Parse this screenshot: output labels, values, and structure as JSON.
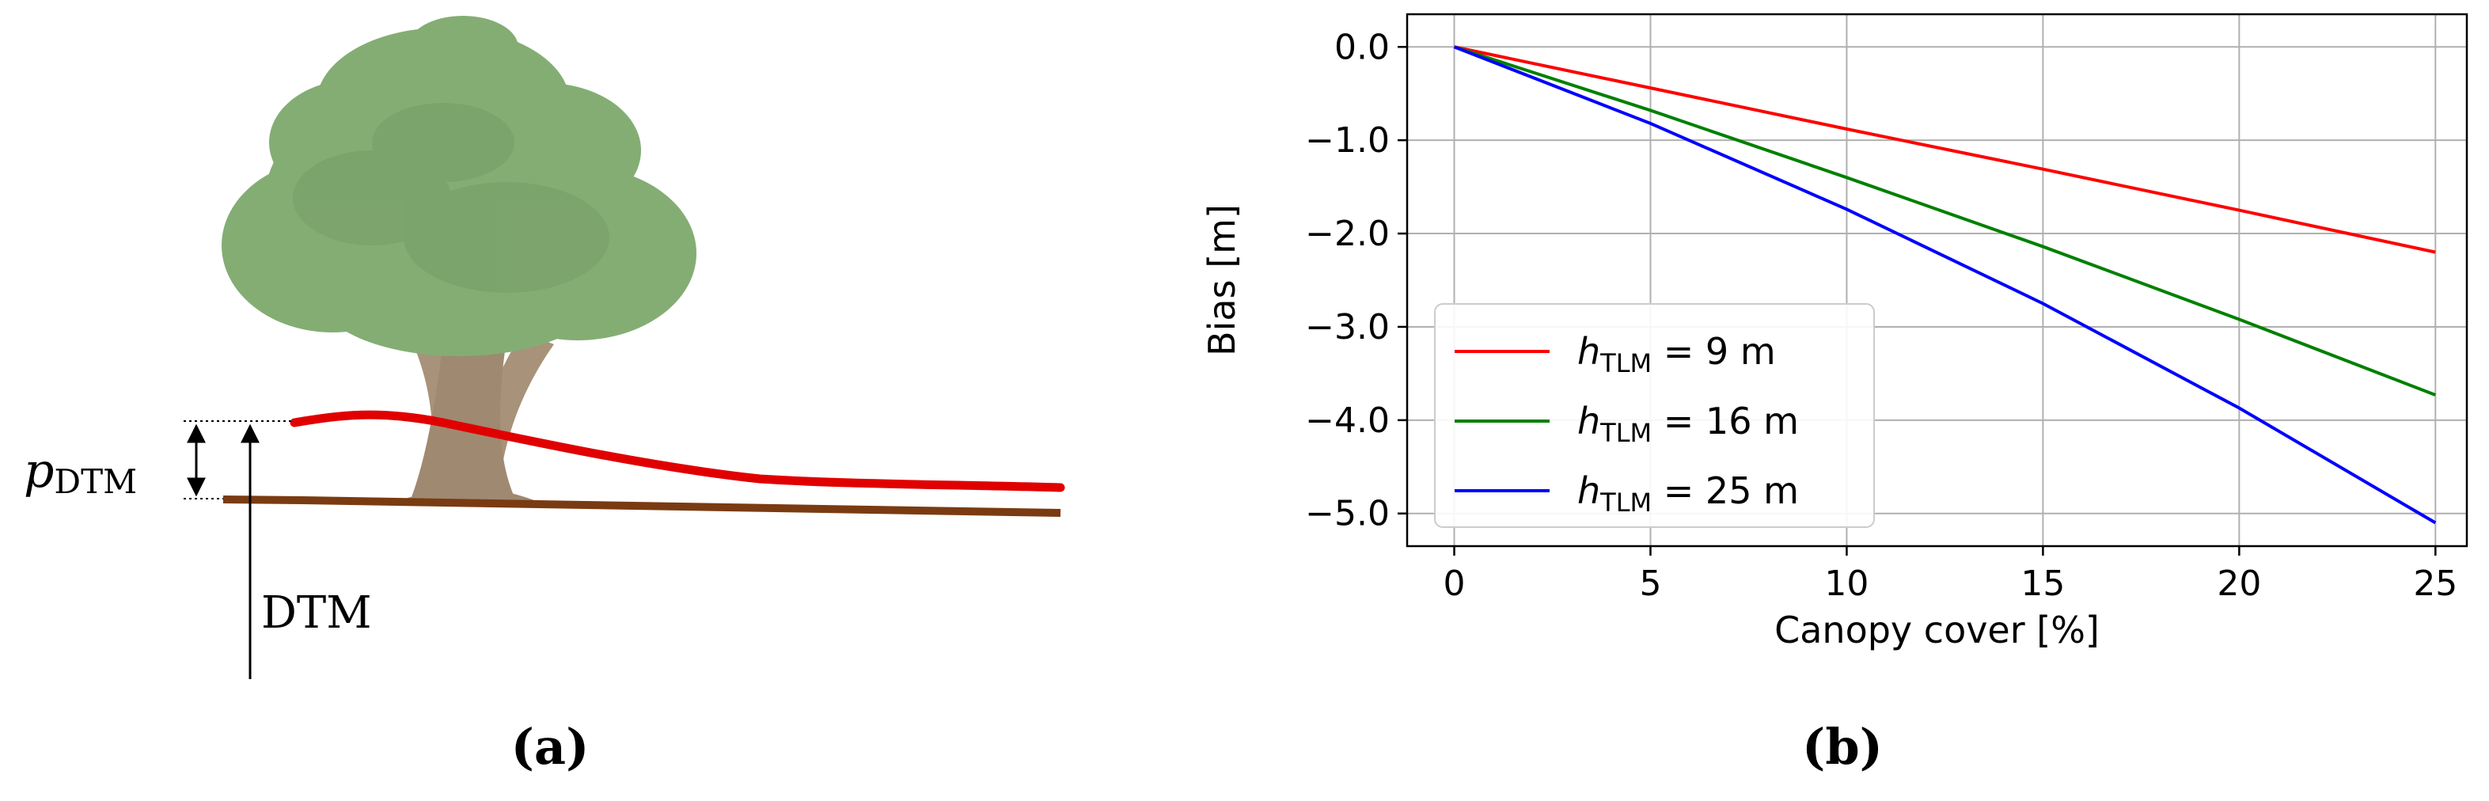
{
  "panel_a": {
    "caption": "(a)",
    "p_label_base": "p",
    "p_label_sub": "DTM",
    "dtm_label": "DTM",
    "colors": {
      "dsm_line": "#e00000",
      "ground_line": "#7a3b12",
      "tree_crown": "#6f9f5c",
      "tree_trunk": "#9a7f63"
    }
  },
  "panel_b": {
    "caption": "(b)",
    "chart_data": {
      "type": "line",
      "xlabel": "Canopy cover [%]",
      "ylabel": "Bias [m]",
      "xlim": [
        -1.2,
        25.8
      ],
      "ylim": [
        -5.35,
        0.35
      ],
      "xticks": [
        0,
        5,
        10,
        15,
        20,
        25
      ],
      "xtick_labels": [
        "0",
        "5",
        "10",
        "15",
        "20",
        "25"
      ],
      "yticks": [
        0,
        -1,
        -2,
        -3,
        -4,
        -5
      ],
      "ytick_labels": [
        "0.0",
        "−1.0",
        "−2.0",
        "−3.0",
        "−4.0",
        "−5.0"
      ],
      "grid": true,
      "legend_position": "lower-left",
      "legend_prefix": "h",
      "legend_sub": "TLM",
      "x": [
        0,
        5,
        10,
        15,
        20,
        25
      ],
      "series": [
        {
          "name": " = 9 m",
          "color": "#ff0000",
          "values": [
            0,
            -0.44,
            -0.88,
            -1.31,
            -1.75,
            -2.2
          ]
        },
        {
          "name": " = 16 m",
          "color": "#008000",
          "values": [
            0,
            -0.68,
            -1.4,
            -2.14,
            -2.92,
            -3.73
          ]
        },
        {
          "name": " = 25 m",
          "color": "#0000ff",
          "values": [
            0,
            -0.82,
            -1.74,
            -2.75,
            -3.87,
            -5.1
          ]
        }
      ]
    }
  }
}
